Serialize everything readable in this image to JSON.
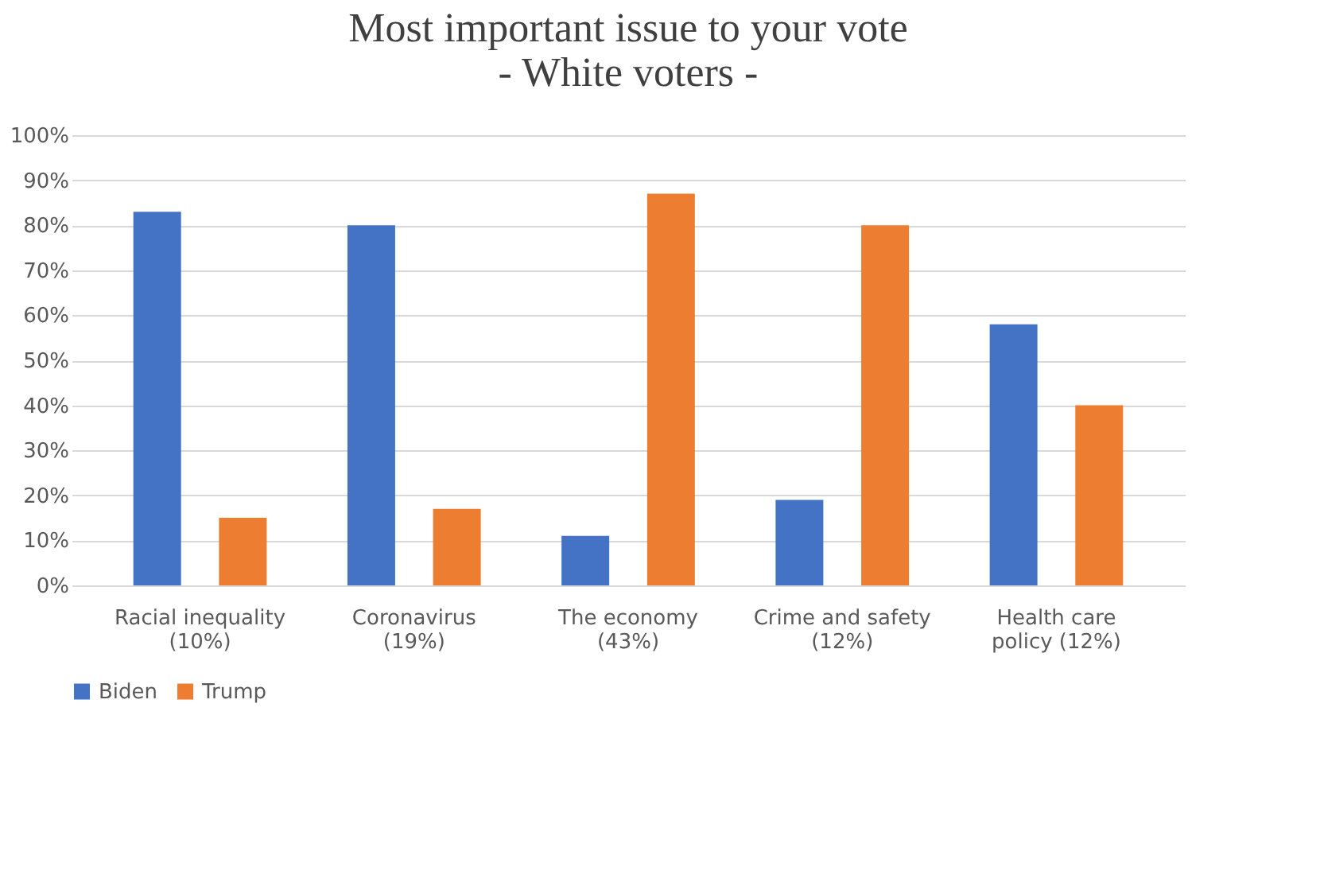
{
  "chart_data": {
    "type": "bar",
    "title": [
      "Most important issue to your vote",
      "- White voters -"
    ],
    "categories": [
      "Racial inequality\n(10%)",
      "Coronavirus\n(19%)",
      "The economy\n(43%)",
      "Crime and safety\n(12%)",
      "Health care\npolicy (12%)"
    ],
    "series": [
      {
        "name": "Biden",
        "color": "#4472c4",
        "values": [
          83,
          80,
          11,
          19,
          58
        ]
      },
      {
        "name": "Trump",
        "color": "#ed7d31",
        "values": [
          15,
          17,
          87,
          80,
          40
        ]
      }
    ],
    "ylim": [
      0,
      100
    ],
    "yticks": [
      {
        "value": 0,
        "label": "0%"
      },
      {
        "value": 10,
        "label": "10%"
      },
      {
        "value": 20,
        "label": "20%"
      },
      {
        "value": 30,
        "label": "30%"
      },
      {
        "value": 40,
        "label": "40%"
      },
      {
        "value": 50,
        "label": "50%"
      },
      {
        "value": 60,
        "label": "60%"
      },
      {
        "value": 70,
        "label": "70%"
      },
      {
        "value": 80,
        "label": "80%"
      },
      {
        "value": 90,
        "label": "90%"
      },
      {
        "value": 100,
        "label": "100%"
      }
    ],
    "grid": "y",
    "legend": "bottom"
  }
}
